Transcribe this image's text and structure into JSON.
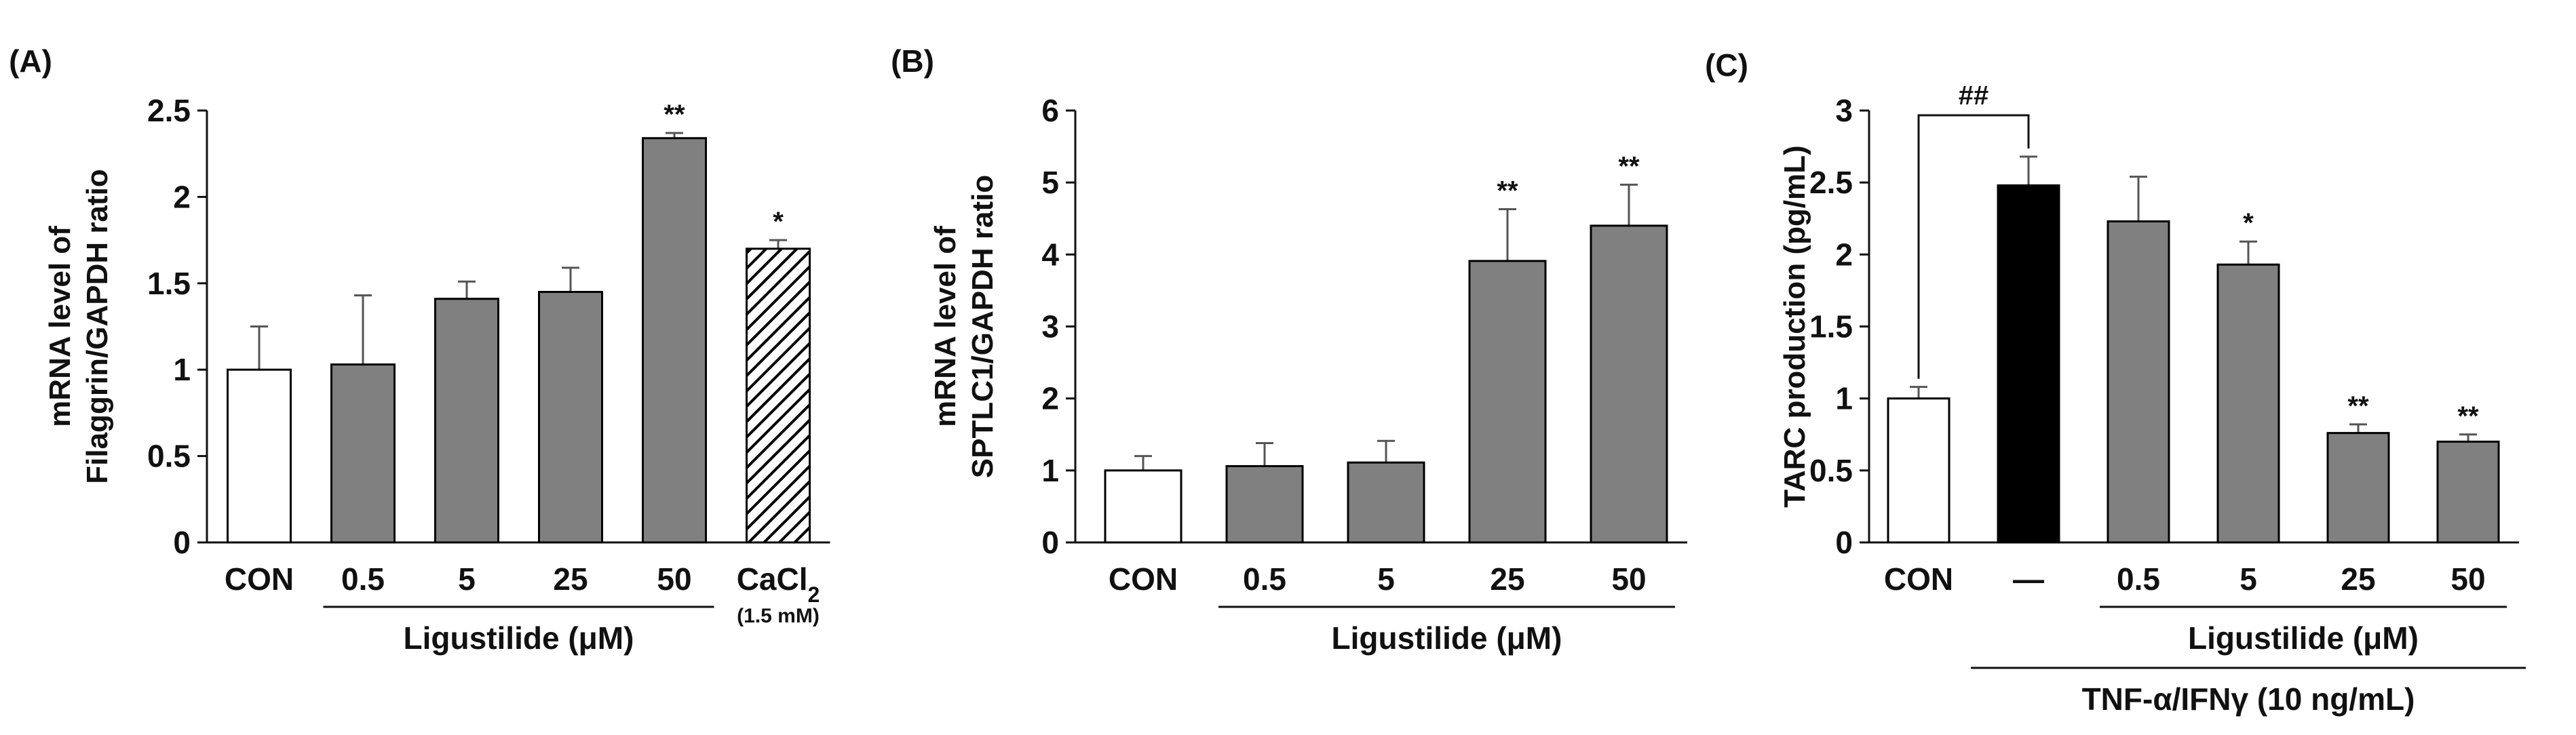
{
  "chart_data": [
    {
      "type": "bar",
      "panel_label": "(A)",
      "ylabel_lines": [
        "mRNA level of",
        "Filaggrin/GAPDH ratio"
      ],
      "ylim": [
        0,
        2.5
      ],
      "yticks": [
        "0",
        "0.5",
        "1",
        "1.5",
        "2",
        "2.5"
      ],
      "categories": [
        "CON",
        "0.5",
        "5",
        "25",
        "50",
        "CaCl2"
      ],
      "category_sub": [
        "",
        "",
        "",
        "",
        "",
        "(1.5 mM)"
      ],
      "values": [
        1.0,
        1.03,
        1.41,
        1.45,
        2.34,
        1.7
      ],
      "errors": [
        0.25,
        0.4,
        0.1,
        0.14,
        0.03,
        0.05
      ],
      "fills": [
        "white",
        "gray",
        "gray",
        "gray",
        "gray",
        "hatched"
      ],
      "significance": [
        "",
        "",
        "",
        "",
        "**",
        "*"
      ],
      "group_label": "Ligustilide (μM)",
      "group_range": [
        1,
        4
      ]
    },
    {
      "type": "bar",
      "panel_label": "(B)",
      "ylabel_lines": [
        "mRNA level of",
        "SPTLC1/GAPDH ratio"
      ],
      "ylim": [
        0,
        6
      ],
      "yticks": [
        "0",
        "1",
        "2",
        "3",
        "4",
        "5",
        "6"
      ],
      "categories": [
        "CON",
        "0.5",
        "5",
        "25",
        "50"
      ],
      "values": [
        1.0,
        1.06,
        1.11,
        3.91,
        4.4
      ],
      "errors": [
        0.2,
        0.32,
        0.3,
        0.72,
        0.57
      ],
      "fills": [
        "white",
        "gray",
        "gray",
        "gray",
        "gray"
      ],
      "significance": [
        "",
        "",
        "",
        "**",
        "**"
      ],
      "group_label": "Ligustilide (μM)",
      "group_range": [
        1,
        4
      ]
    },
    {
      "type": "bar",
      "panel_label": "(C)",
      "ylabel": "TARC production (pg/mL)",
      "ylim": [
        0,
        3
      ],
      "yticks": [
        "0",
        "0.5",
        "1",
        "1.5",
        "2",
        "2.5",
        "3"
      ],
      "categories": [
        "CON",
        "—",
        "0.5",
        "5",
        "25",
        "50"
      ],
      "values": [
        1.0,
        2.48,
        2.23,
        1.93,
        0.76,
        0.7
      ],
      "errors": [
        0.08,
        0.2,
        0.31,
        0.16,
        0.06,
        0.05
      ],
      "fills": [
        "white",
        "black",
        "gray",
        "gray",
        "gray",
        "gray"
      ],
      "significance": [
        "",
        "",
        "",
        "*",
        "**",
        "**"
      ],
      "bracket_label": "##",
      "group_label": "Ligustilide (μM)",
      "group_range": [
        2,
        5
      ],
      "group2_label": "TNF-α/IFNγ (10 ng/mL)",
      "group2_range": [
        1,
        5
      ]
    }
  ],
  "colors": {
    "gray": "#808080",
    "black": "#000000",
    "white": "#ffffff",
    "axis": "#111111"
  }
}
